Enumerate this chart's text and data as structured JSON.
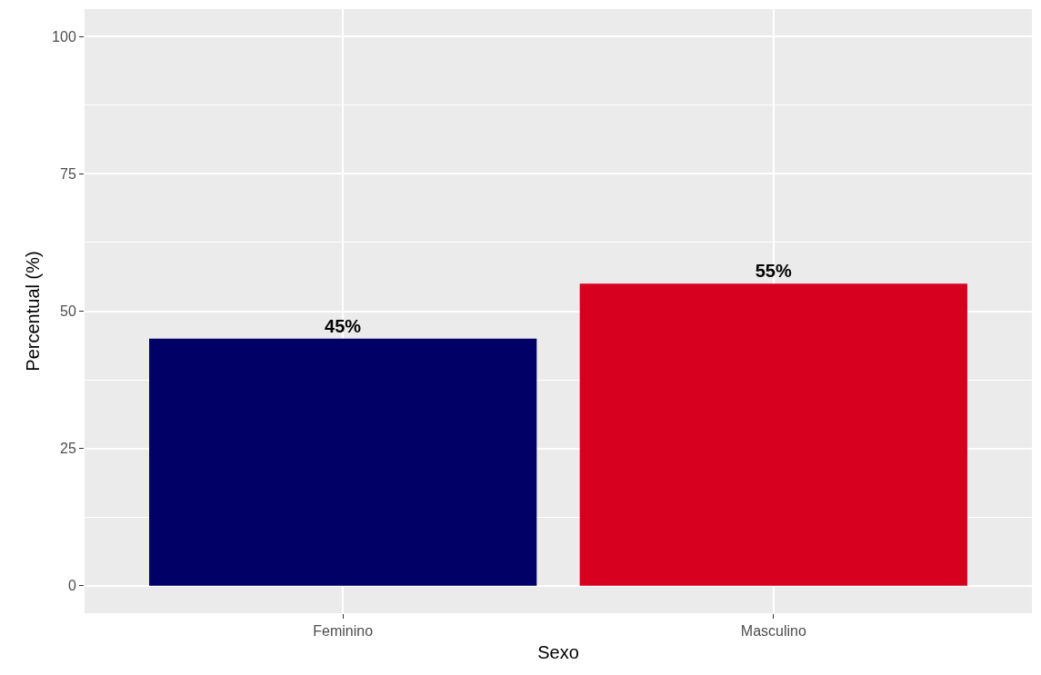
{
  "chart_data": {
    "type": "bar",
    "xlabel": "Sexo",
    "ylabel": "Percentual (%)",
    "categories": [
      "Feminino",
      "Masculino"
    ],
    "values": [
      45,
      55
    ],
    "colors": [
      "#000066",
      "#d7001f"
    ],
    "value_labels": [
      "45%",
      "55%"
    ],
    "ylim": [
      -5,
      105
    ],
    "yticks": [
      0,
      25,
      50,
      75,
      100
    ],
    "grid": true
  }
}
